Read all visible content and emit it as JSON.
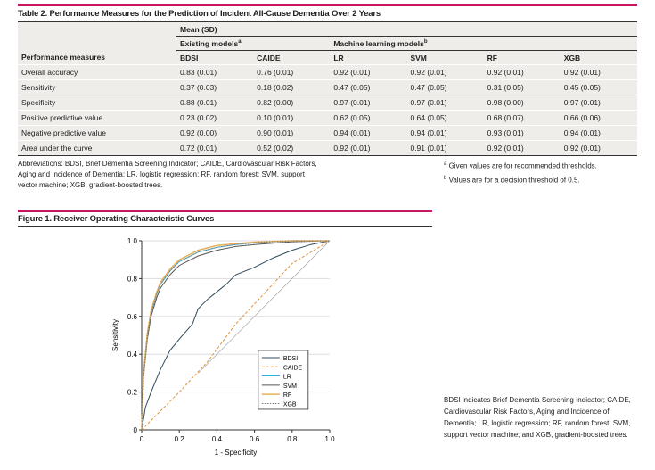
{
  "table": {
    "title": "Table 2. Performance Measures for the Prediction of Incident All-Cause Dementia Over 2 Years",
    "mean_label": "Mean (SD)",
    "existing_label": "Existing models",
    "existing_sup": "a",
    "ml_label": "Machine learning models",
    "ml_sup": "b",
    "columns": [
      "Performance measures",
      "BDSI",
      "CAIDE",
      "LR",
      "SVM",
      "RF",
      "XGB"
    ],
    "rows": [
      [
        "Overall accuracy",
        "0.83 (0.01)",
        "0.76 (0.01)",
        "0.92 (0.01)",
        "0.92 (0.01)",
        "0.92 (0.01)",
        "0.92 (0.01)"
      ],
      [
        "Sensitivity",
        "0.37 (0.03)",
        "0.18 (0.02)",
        "0.47 (0.05)",
        "0.47 (0.05)",
        "0.31 (0.05)",
        "0.45 (0.05)"
      ],
      [
        "Specificity",
        "0.88 (0.01)",
        "0.82 (0.00)",
        "0.97 (0.01)",
        "0.97 (0.01)",
        "0.98 (0.00)",
        "0.97 (0.01)"
      ],
      [
        "Positive predictive value",
        "0.23 (0.02)",
        "0.10 (0.01)",
        "0.62 (0.05)",
        "0.64 (0.05)",
        "0.68 (0.07)",
        "0.66 (0.06)"
      ],
      [
        "Negative predictive value",
        "0.92 (0.00)",
        "0.90 (0.01)",
        "0.94 (0.01)",
        "0.94 (0.01)",
        "0.93 (0.01)",
        "0.94 (0.01)"
      ],
      [
        "Area under the curve",
        "0.72 (0.01)",
        "0.52 (0.02)",
        "0.92 (0.01)",
        "0.91 (0.01)",
        "0.92 (0.01)",
        "0.92 (0.01)"
      ]
    ],
    "abbreviations": "Abbreviations: BDSI, Brief Dementia Screening Indicator; CAIDE, Cardiovascular Risk Factors, Aging and Incidence of Dementia; LR, logistic regression; RF, random forest; SVM, support vector machine; XGB, gradient-boosted trees.",
    "footnote_a": "Given values are for recommended thresholds.",
    "footnote_b": "Values are for a decision threshold of 0.5."
  },
  "figure": {
    "title": "Figure 1. Receiver Operating Characteristic Curves",
    "caption": "BDSI indicates Brief Dementia Screening Indicator; CAIDE, Cardiovascular Risk Factors, Aging and Incidence of Dementia; LR, logistic regression; RF, random forest; SVM, support vector machine; and XGB, gradient-boosted trees."
  },
  "chart_data": {
    "type": "line",
    "xlabel": "1 - Specificity",
    "ylabel": "Sensitivity",
    "xlim": [
      0,
      1
    ],
    "ylim": [
      0,
      1
    ],
    "xticks": [
      "0",
      "0.2",
      "0.4",
      "0.6",
      "0.8",
      "1.0"
    ],
    "yticks": [
      "0",
      "0.2",
      "0.4",
      "0.6",
      "0.8",
      "1.0"
    ],
    "grid": "horizontal",
    "legend": "bottom-right",
    "series": [
      {
        "name": "BDSI",
        "color": "#2e4a5a",
        "dash": "",
        "points": [
          [
            0,
            0
          ],
          [
            0.02,
            0.12
          ],
          [
            0.05,
            0.2
          ],
          [
            0.1,
            0.32
          ],
          [
            0.15,
            0.42
          ],
          [
            0.2,
            0.48
          ],
          [
            0.27,
            0.56
          ],
          [
            0.3,
            0.64
          ],
          [
            0.35,
            0.69
          ],
          [
            0.4,
            0.73
          ],
          [
            0.45,
            0.77
          ],
          [
            0.5,
            0.82
          ],
          [
            0.6,
            0.86
          ],
          [
            0.7,
            0.91
          ],
          [
            0.8,
            0.95
          ],
          [
            0.9,
            0.98
          ],
          [
            1,
            1
          ]
        ]
      },
      {
        "name": "CAIDE",
        "color": "#e0913a",
        "dash": "3,2",
        "points": [
          [
            0,
            0
          ],
          [
            0.2,
            0.2
          ],
          [
            0.35,
            0.36
          ],
          [
            0.5,
            0.56
          ],
          [
            0.65,
            0.72
          ],
          [
            0.8,
            0.88
          ],
          [
            0.9,
            0.94
          ],
          [
            1,
            1
          ]
        ]
      },
      {
        "name": "LR",
        "color": "#3bb0d8",
        "dash": "",
        "points": [
          [
            0,
            0
          ],
          [
            0.01,
            0.3
          ],
          [
            0.03,
            0.5
          ],
          [
            0.05,
            0.62
          ],
          [
            0.08,
            0.72
          ],
          [
            0.1,
            0.77
          ],
          [
            0.15,
            0.84
          ],
          [
            0.2,
            0.89
          ],
          [
            0.3,
            0.94
          ],
          [
            0.4,
            0.965
          ],
          [
            0.5,
            0.98
          ],
          [
            0.6,
            0.99
          ],
          [
            0.8,
            1
          ],
          [
            1,
            1
          ]
        ]
      },
      {
        "name": "SVM",
        "color": "#555555",
        "dash": "",
        "points": [
          [
            0,
            0
          ],
          [
            0.01,
            0.28
          ],
          [
            0.03,
            0.48
          ],
          [
            0.05,
            0.6
          ],
          [
            0.08,
            0.7
          ],
          [
            0.1,
            0.75
          ],
          [
            0.15,
            0.82
          ],
          [
            0.2,
            0.87
          ],
          [
            0.3,
            0.92
          ],
          [
            0.4,
            0.95
          ],
          [
            0.5,
            0.97
          ],
          [
            0.6,
            0.98
          ],
          [
            0.8,
            0.995
          ],
          [
            1,
            1
          ]
        ]
      },
      {
        "name": "RF",
        "color": "#e8b15a",
        "dash": "",
        "points": [
          [
            0,
            0
          ],
          [
            0.01,
            0.3
          ],
          [
            0.03,
            0.51
          ],
          [
            0.05,
            0.63
          ],
          [
            0.08,
            0.73
          ],
          [
            0.1,
            0.78
          ],
          [
            0.15,
            0.85
          ],
          [
            0.2,
            0.9
          ],
          [
            0.3,
            0.95
          ],
          [
            0.4,
            0.975
          ],
          [
            0.5,
            0.985
          ],
          [
            0.6,
            0.993
          ],
          [
            0.8,
            1
          ],
          [
            1,
            1
          ]
        ]
      },
      {
        "name": "XGB",
        "color": "#777777",
        "dash": "1.5,1.5",
        "points": [
          [
            0,
            0
          ],
          [
            0.01,
            0.29
          ],
          [
            0.03,
            0.5
          ],
          [
            0.05,
            0.62
          ],
          [
            0.08,
            0.72
          ],
          [
            0.1,
            0.77
          ],
          [
            0.15,
            0.84
          ],
          [
            0.2,
            0.89
          ],
          [
            0.3,
            0.94
          ],
          [
            0.4,
            0.965
          ],
          [
            0.5,
            0.98
          ],
          [
            0.6,
            0.99
          ],
          [
            0.8,
            1
          ],
          [
            1,
            1
          ]
        ]
      }
    ]
  }
}
